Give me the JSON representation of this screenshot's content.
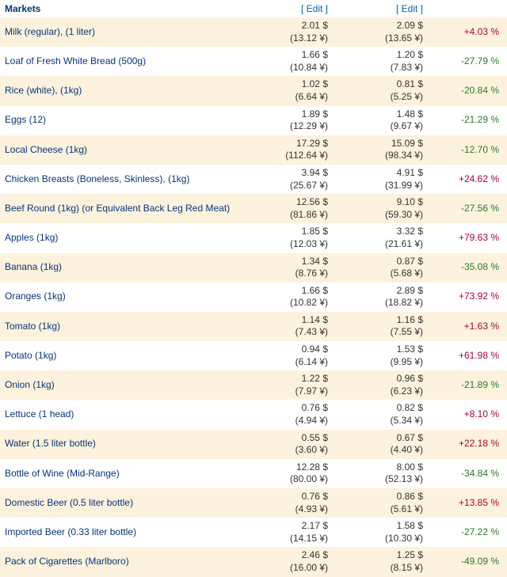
{
  "header": {
    "title": "Markets",
    "edit_label": "[ Edit ]"
  },
  "currency": {
    "primary_symbol": "$",
    "secondary_symbol": "¥"
  },
  "rows": [
    {
      "name": "Milk (regular), (1 liter)",
      "p1": "2.01",
      "p1j": "13.12",
      "p2": "2.09",
      "p2j": "13.65",
      "pct": "+4.03 %",
      "sign": "pos"
    },
    {
      "name": "Loaf of Fresh White Bread (500g)",
      "p1": "1.66",
      "p1j": "10.84",
      "p2": "1.20",
      "p2j": "7.83",
      "pct": "-27.79 %",
      "sign": "neg"
    },
    {
      "name": "Rice (white), (1kg)",
      "p1": "1.02",
      "p1j": "6.64",
      "p2": "0.81",
      "p2j": "5.25",
      "pct": "-20.84 %",
      "sign": "neg"
    },
    {
      "name": "Eggs (12)",
      "p1": "1.89",
      "p1j": "12.29",
      "p2": "1.48",
      "p2j": "9.67",
      "pct": "-21.29 %",
      "sign": "neg"
    },
    {
      "name": "Local Cheese (1kg)",
      "p1": "17.29",
      "p1j": "112.64",
      "p2": "15.09",
      "p2j": "98.34",
      "pct": "-12.70 %",
      "sign": "neg"
    },
    {
      "name": "Chicken Breasts (Boneless, Skinless), (1kg)",
      "p1": "3.94",
      "p1j": "25.67",
      "p2": "4.91",
      "p2j": "31.99",
      "pct": "+24.62 %",
      "sign": "pos"
    },
    {
      "name": "Beef Round (1kg) (or Equivalent Back Leg Red Meat)",
      "p1": "12.56",
      "p1j": "81.86",
      "p2": "9.10",
      "p2j": "59.30",
      "pct": "-27.56 %",
      "sign": "neg"
    },
    {
      "name": "Apples (1kg)",
      "p1": "1.85",
      "p1j": "12.03",
      "p2": "3.32",
      "p2j": "21.61",
      "pct": "+79.63 %",
      "sign": "pos"
    },
    {
      "name": "Banana (1kg)",
      "p1": "1.34",
      "p1j": "8.76",
      "p2": "0.87",
      "p2j": "5.68",
      "pct": "-35.08 %",
      "sign": "neg"
    },
    {
      "name": "Oranges (1kg)",
      "p1": "1.66",
      "p1j": "10.82",
      "p2": "2.89",
      "p2j": "18.82",
      "pct": "+73.92 %",
      "sign": "pos"
    },
    {
      "name": "Tomato (1kg)",
      "p1": "1.14",
      "p1j": "7.43",
      "p2": "1.16",
      "p2j": "7.55",
      "pct": "+1.63 %",
      "sign": "pos"
    },
    {
      "name": "Potato (1kg)",
      "p1": "0.94",
      "p1j": "6.14",
      "p2": "1.53",
      "p2j": "9.95",
      "pct": "+61.98 %",
      "sign": "pos"
    },
    {
      "name": "Onion (1kg)",
      "p1": "1.22",
      "p1j": "7.97",
      "p2": "0.96",
      "p2j": "6.23",
      "pct": "-21.89 %",
      "sign": "neg"
    },
    {
      "name": "Lettuce (1 head)",
      "p1": "0.76",
      "p1j": "4.94",
      "p2": "0.82",
      "p2j": "5.34",
      "pct": "+8.10 %",
      "sign": "pos"
    },
    {
      "name": "Water (1.5 liter bottle)",
      "p1": "0.55",
      "p1j": "3.60",
      "p2": "0.67",
      "p2j": "4.40",
      "pct": "+22.18 %",
      "sign": "pos"
    },
    {
      "name": "Bottle of Wine (Mid-Range)",
      "p1": "12.28",
      "p1j": "80.00",
      "p2": "8.00",
      "p2j": "52.13",
      "pct": "-34.84 %",
      "sign": "neg"
    },
    {
      "name": "Domestic Beer (0.5 liter bottle)",
      "p1": "0.76",
      "p1j": "4.93",
      "p2": "0.86",
      "p2j": "5.61",
      "pct": "+13.85 %",
      "sign": "pos"
    },
    {
      "name": "Imported Beer (0.33 liter bottle)",
      "p1": "2.17",
      "p1j": "14.15",
      "p2": "1.58",
      "p2j": "10.30",
      "pct": "-27.22 %",
      "sign": "neg"
    },
    {
      "name": "Pack of Cigarettes (Marlboro)",
      "p1": "2.46",
      "p1j": "16.00",
      "p2": "1.25",
      "p2j": "8.15",
      "pct": "-49.09 %",
      "sign": "neg"
    }
  ]
}
